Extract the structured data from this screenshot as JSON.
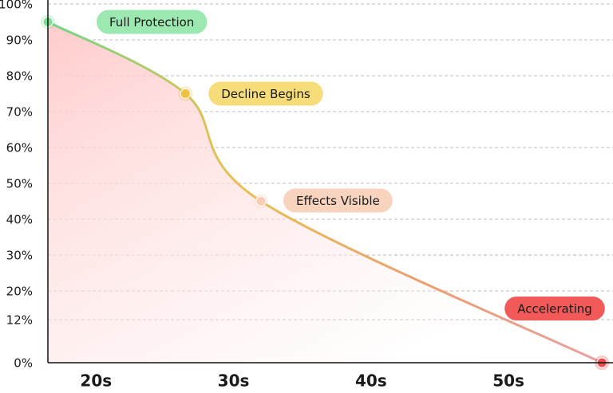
{
  "chart_data": {
    "type": "line",
    "x": [
      16.5,
      26.5,
      32,
      56.8
    ],
    "series": [
      {
        "values": [
          95,
          75,
          45,
          0
        ],
        "gradient": [
          "#6fd68a",
          "#eac050",
          "#eba070",
          "#e8a0a0"
        ]
      }
    ],
    "annotations": [
      {
        "text": "Full Protection",
        "color": "#9be8b0",
        "point_color": "#7edc96"
      },
      {
        "text": "Decline Begins",
        "color": "#f7dc7a",
        "point_color": "#f0c040"
      },
      {
        "text": "Effects Visible",
        "color": "#f8d3bd",
        "point_color": "#f8cdb5"
      },
      {
        "text": "Accelerating",
        "color": "#f25a5a",
        "point_color": "#ef4a4a"
      }
    ],
    "xlim": [
      16.5,
      57.6
    ],
    "xticks": [
      {
        "value": 20,
        "label": "20s"
      },
      {
        "value": 30,
        "label": "30s"
      },
      {
        "value": 40,
        "label": "40s"
      },
      {
        "value": 50,
        "label": "50s"
      }
    ],
    "ylim": [
      0,
      100
    ],
    "yticks": [
      {
        "value": 0,
        "label": "0%"
      },
      {
        "value": 12,
        "label": "12%"
      },
      {
        "value": 20,
        "label": "20%"
      },
      {
        "value": 30,
        "label": "30%"
      },
      {
        "value": 40,
        "label": "40%"
      },
      {
        "value": 50,
        "label": "50%"
      },
      {
        "value": 60,
        "label": "60%"
      },
      {
        "value": 70,
        "label": "70%"
      },
      {
        "value": 80,
        "label": "80%"
      },
      {
        "value": 90,
        "label": "90%"
      },
      {
        "value": 100,
        "label": "100%"
      }
    ],
    "grid": true
  }
}
